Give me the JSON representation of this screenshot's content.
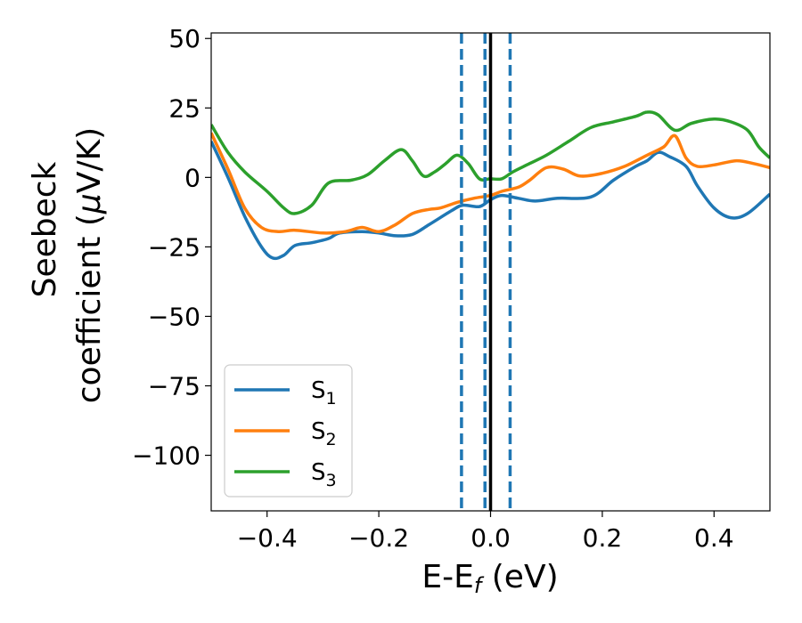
{
  "chart_data": {
    "type": "line",
    "xlabel": "E-E",
    "xlabel_sub": "f",
    "xlabel_unit": " (eV)",
    "ylabel_line1": "Seebeck",
    "ylabel_line2": "coefficient  (",
    "ylabel_mu": "μ",
    "ylabel_line2_end": "V/K)",
    "xlim": [
      -0.5,
      0.5
    ],
    "ylim": [
      -120,
      52
    ],
    "x_ticks": [
      -0.4,
      -0.2,
      0.0,
      0.2,
      0.4
    ],
    "x_tick_labels": [
      "−0.4",
      "−0.2",
      "0.0",
      "0.2",
      "0.4"
    ],
    "y_ticks": [
      50,
      25,
      0,
      -25,
      -50,
      -75,
      -100
    ],
    "y_tick_labels": [
      "50",
      "25",
      "0",
      "−25",
      "−50",
      "−75",
      "−100"
    ],
    "grid": false,
    "legend_position": "lower-left",
    "vlines": [
      {
        "x": 0.0,
        "color": "#000000",
        "style": "solid"
      },
      {
        "x": -0.052,
        "color": "#1f77b4",
        "style": "dashed"
      },
      {
        "x": -0.01,
        "color": "#1f77b4",
        "style": "dashed"
      },
      {
        "x": 0.035,
        "color": "#1f77b4",
        "style": "dashed"
      }
    ],
    "series": [
      {
        "name": "S",
        "sub": "1",
        "color": "#1f77b4",
        "points": [
          [
            -0.5,
            13
          ],
          [
            -0.47,
            0
          ],
          [
            -0.44,
            -14
          ],
          [
            -0.41,
            -25
          ],
          [
            -0.39,
            -29
          ],
          [
            -0.37,
            -28
          ],
          [
            -0.35,
            -24.5
          ],
          [
            -0.32,
            -23.5
          ],
          [
            -0.29,
            -22
          ],
          [
            -0.27,
            -20
          ],
          [
            -0.23,
            -19.5
          ],
          [
            -0.2,
            -20
          ],
          [
            -0.17,
            -21
          ],
          [
            -0.14,
            -20.5
          ],
          [
            -0.11,
            -17
          ],
          [
            -0.07,
            -12
          ],
          [
            -0.05,
            -10
          ],
          [
            -0.02,
            -10.5
          ],
          [
            0.0,
            -8
          ],
          [
            0.02,
            -6.5
          ],
          [
            0.05,
            -7.5
          ],
          [
            0.08,
            -8.5
          ],
          [
            0.12,
            -7.5
          ],
          [
            0.18,
            -7
          ],
          [
            0.22,
            -1
          ],
          [
            0.26,
            4
          ],
          [
            0.28,
            6
          ],
          [
            0.3,
            9
          ],
          [
            0.32,
            7.5
          ],
          [
            0.35,
            4
          ],
          [
            0.37,
            -3
          ],
          [
            0.4,
            -11
          ],
          [
            0.43,
            -14.5
          ],
          [
            0.46,
            -13
          ],
          [
            0.5,
            -6
          ]
        ]
      },
      {
        "name": "S",
        "sub": "2",
        "color": "#ff7f0e",
        "points": [
          [
            -0.5,
            16
          ],
          [
            -0.47,
            3
          ],
          [
            -0.44,
            -11
          ],
          [
            -0.41,
            -18
          ],
          [
            -0.38,
            -19.5
          ],
          [
            -0.35,
            -19
          ],
          [
            -0.3,
            -20
          ],
          [
            -0.26,
            -19.5
          ],
          [
            -0.23,
            -18
          ],
          [
            -0.2,
            -19.5
          ],
          [
            -0.17,
            -17
          ],
          [
            -0.14,
            -13
          ],
          [
            -0.11,
            -11.5
          ],
          [
            -0.09,
            -11
          ],
          [
            -0.06,
            -9
          ],
          [
            -0.03,
            -7.5
          ],
          [
            0.0,
            -6.5
          ],
          [
            0.02,
            -5
          ],
          [
            0.05,
            -3.5
          ],
          [
            0.07,
            -1
          ],
          [
            0.1,
            3.5
          ],
          [
            0.13,
            3
          ],
          [
            0.16,
            0.5
          ],
          [
            0.2,
            1.5
          ],
          [
            0.24,
            4
          ],
          [
            0.28,
            8
          ],
          [
            0.31,
            11
          ],
          [
            0.33,
            15
          ],
          [
            0.35,
            7
          ],
          [
            0.37,
            4
          ],
          [
            0.4,
            4.5
          ],
          [
            0.44,
            6
          ],
          [
            0.47,
            5
          ],
          [
            0.5,
            3.5
          ]
        ]
      },
      {
        "name": "S",
        "sub": "3",
        "color": "#2ca02c",
        "points": [
          [
            -0.5,
            19
          ],
          [
            -0.47,
            9
          ],
          [
            -0.44,
            2
          ],
          [
            -0.4,
            -5
          ],
          [
            -0.37,
            -11
          ],
          [
            -0.35,
            -13
          ],
          [
            -0.32,
            -10
          ],
          [
            -0.29,
            -2
          ],
          [
            -0.25,
            -1
          ],
          [
            -0.22,
            1
          ],
          [
            -0.19,
            6
          ],
          [
            -0.16,
            10
          ],
          [
            -0.14,
            6
          ],
          [
            -0.12,
            0.5
          ],
          [
            -0.1,
            2
          ],
          [
            -0.08,
            5
          ],
          [
            -0.06,
            8
          ],
          [
            -0.04,
            5
          ],
          [
            -0.02,
            -0.5
          ],
          [
            0.0,
            -0.5
          ],
          [
            0.02,
            -0.5
          ],
          [
            0.04,
            2
          ],
          [
            0.07,
            5
          ],
          [
            0.1,
            8
          ],
          [
            0.14,
            13
          ],
          [
            0.18,
            18
          ],
          [
            0.22,
            20
          ],
          [
            0.26,
            22
          ],
          [
            0.28,
            23.5
          ],
          [
            0.3,
            22.5
          ],
          [
            0.33,
            17
          ],
          [
            0.36,
            19.5
          ],
          [
            0.4,
            21
          ],
          [
            0.43,
            20
          ],
          [
            0.46,
            17
          ],
          [
            0.48,
            11
          ],
          [
            0.5,
            7
          ]
        ]
      }
    ]
  }
}
